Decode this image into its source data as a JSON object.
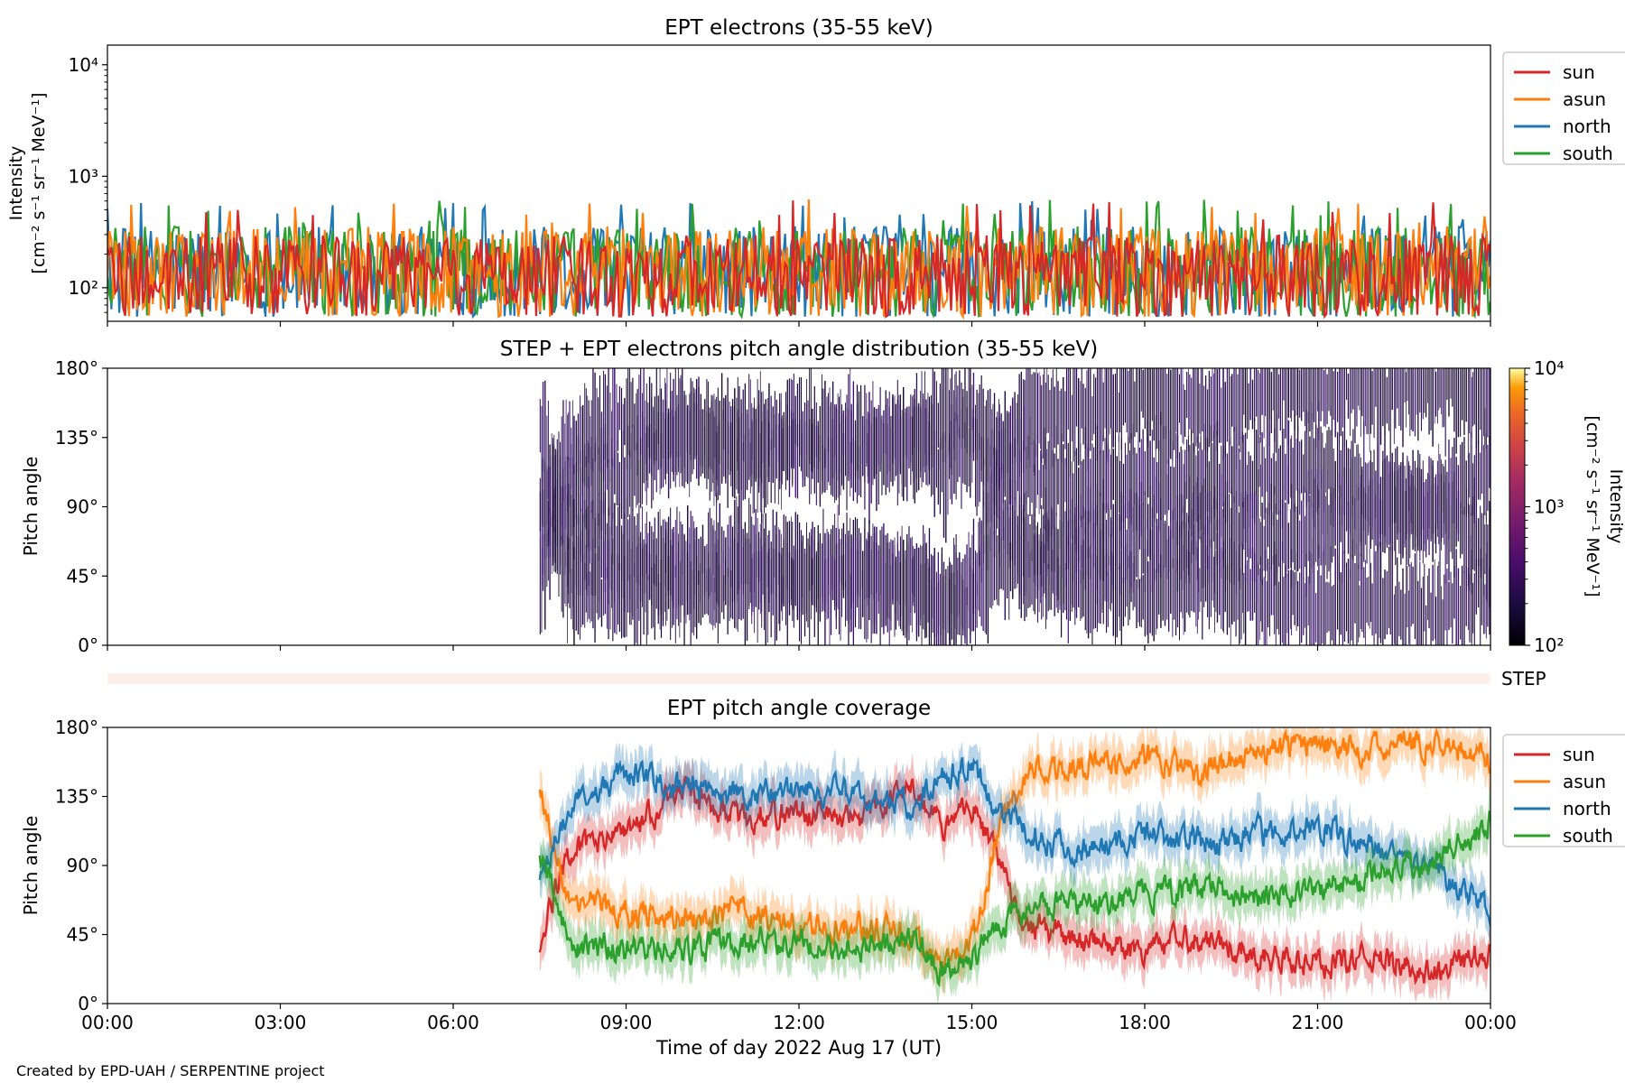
{
  "footer": "Created by EPD-UAH / SERPENTINE project",
  "xlabel": "Time of day 2022 Aug 17 (UT)",
  "xticks": [
    "00:00",
    "03:00",
    "06:00",
    "09:00",
    "12:00",
    "15:00",
    "18:00",
    "21:00",
    "00:00"
  ],
  "colors": {
    "sun": "#d62728",
    "asun": "#ff7f0e",
    "north": "#1f77b4",
    "south": "#2ca02c"
  },
  "chart_data": [
    {
      "type": "line",
      "title": "EPT electrons (35-55 keV)",
      "ylabel_line1": "Intensity",
      "ylabel_line2": "[cm⁻² s⁻¹ sr⁻¹ MeV⁻¹]",
      "yscale": "log",
      "ylim": [
        50,
        15000
      ],
      "yticks": [
        "10²",
        "10³",
        "10⁴"
      ],
      "x_range_hours": [
        0,
        24
      ],
      "legend": [
        "sun",
        "asun",
        "north",
        "south"
      ],
      "legend_position": "right",
      "series": [
        {
          "name": "sun",
          "description_values": {
            "typical_range": [
              60,
              300
            ],
            "peak": 520
          }
        },
        {
          "name": "asun",
          "description_values": {
            "typical_range": [
              60,
              400
            ],
            "peak": 600
          }
        },
        {
          "name": "north",
          "description_values": {
            "typical_range": [
              60,
              350
            ],
            "peak": 600
          }
        },
        {
          "name": "south",
          "description_values": {
            "typical_range": [
              60,
              350
            ],
            "peak": 650
          }
        }
      ]
    },
    {
      "type": "heatmap",
      "title": "STEP + EPT electrons pitch angle distribution (35-55 keV)",
      "ylabel": "Pitch angle",
      "yticks": [
        "0°",
        "45°",
        "90°",
        "135°",
        "180°"
      ],
      "ylim": [
        0,
        180
      ],
      "data_start_hour": 7.5,
      "colorbar_label_line1": "Intensity",
      "colorbar_label_line2": "[cm⁻² s⁻¹ sr⁻¹ MeV⁻¹]",
      "colorbar_ticks": [
        "10²",
        "10³",
        "10⁴"
      ],
      "colorbar_scale": "log",
      "colorbar_range": [
        100,
        10000
      ],
      "step_label": "STEP"
    },
    {
      "type": "line",
      "title": "EPT pitch angle coverage",
      "ylabel": "Pitch angle",
      "yticks": [
        "0°",
        "45°",
        "90°",
        "135°",
        "180°"
      ],
      "ylim": [
        0,
        180
      ],
      "data_start_hour": 7.5,
      "legend": [
        "sun",
        "asun",
        "north",
        "south"
      ],
      "legend_position": "right",
      "series": [
        {
          "name": "sun",
          "x": [
            7.5,
            8,
            9,
            10,
            11,
            12,
            13,
            14,
            14.5,
            15,
            15.5,
            16,
            17,
            18,
            19,
            20,
            21,
            22,
            23,
            24
          ],
          "y": [
            40,
            100,
            110,
            140,
            120,
            125,
            120,
            140,
            110,
            130,
            90,
            50,
            40,
            35,
            45,
            30,
            25,
            30,
            20,
            35
          ]
        },
        {
          "name": "asun",
          "x": [
            7.5,
            8,
            9,
            10,
            11,
            12,
            13,
            14,
            14.5,
            15,
            15.5,
            16,
            17,
            18,
            19,
            20,
            21,
            22,
            23,
            24
          ],
          "y": [
            140,
            70,
            60,
            55,
            60,
            50,
            50,
            45,
            25,
            40,
            120,
            150,
            155,
            160,
            150,
            165,
            170,
            165,
            170,
            160
          ]
        },
        {
          "name": "north",
          "x": [
            7.5,
            8,
            9,
            10,
            11,
            12,
            13,
            14,
            14.5,
            15,
            15.5,
            16,
            17,
            18,
            19,
            20,
            21,
            22,
            23,
            24
          ],
          "y": [
            75,
            130,
            150,
            140,
            135,
            140,
            135,
            130,
            150,
            155,
            125,
            110,
            100,
            110,
            105,
            110,
            115,
            100,
            90,
            60
          ]
        },
        {
          "name": "south",
          "x": [
            7.5,
            8,
            9,
            10,
            11,
            12,
            13,
            14,
            14.5,
            15,
            15.5,
            16,
            17,
            18,
            19,
            20,
            21,
            22,
            23,
            24
          ],
          "y": [
            100,
            40,
            35,
            35,
            40,
            40,
            35,
            40,
            20,
            30,
            55,
            60,
            65,
            70,
            75,
            70,
            75,
            85,
            90,
            120
          ]
        }
      ]
    }
  ]
}
